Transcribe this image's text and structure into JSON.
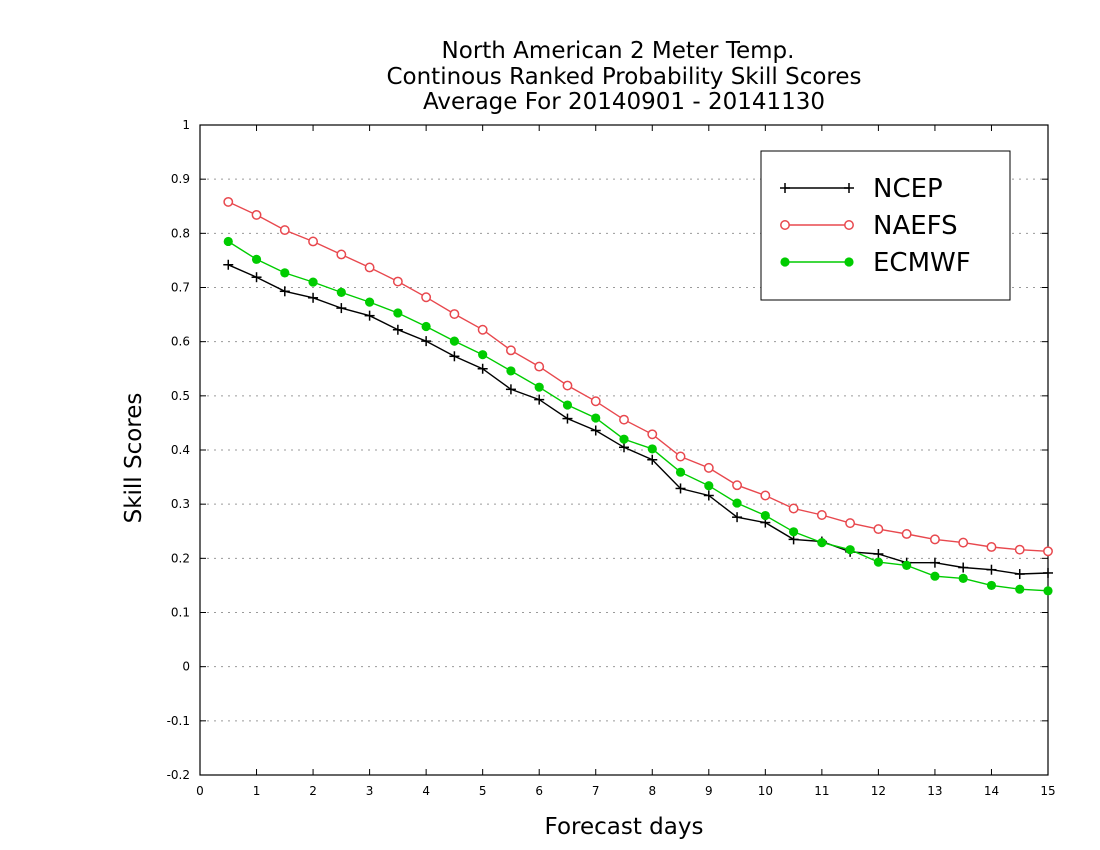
{
  "chart_data": {
    "type": "line",
    "title_lines": [
      "North American 2 Meter Temp.",
      "Continous Ranked Probability Skill Scores",
      "Average For 20140901 - 20141130"
    ],
    "xlabel": "Forecast days",
    "ylabel": "Skill Scores",
    "xlim": [
      0,
      15
    ],
    "ylim": [
      -0.2,
      1
    ],
    "xticks": [
      0,
      1,
      2,
      3,
      4,
      5,
      6,
      7,
      8,
      9,
      10,
      11,
      12,
      13,
      14,
      15
    ],
    "xtick_labels": [
      "0",
      "1",
      "2",
      "3",
      "4",
      "5",
      "6",
      "7",
      "8",
      "9",
      "10",
      "11",
      "12",
      "13",
      "14",
      "15"
    ],
    "yticks": [
      -0.2,
      -0.1,
      0,
      0.1,
      0.2,
      0.3,
      0.4,
      0.5,
      0.6,
      0.7,
      0.8,
      0.9,
      1
    ],
    "ytick_labels": [
      "-0.2",
      "-0.1",
      "0",
      "0.1",
      "0.2",
      "0.3",
      "0.4",
      "0.5",
      "0.6",
      "0.7",
      "0.8",
      "0.9",
      "1"
    ],
    "grid": "horizontal dotted",
    "legend_position": "top-right",
    "x": [
      0.5,
      1,
      1.5,
      2,
      2.5,
      3,
      3.5,
      4,
      4.5,
      5,
      5.5,
      6,
      6.5,
      7,
      7.5,
      8,
      8.5,
      9,
      9.5,
      10,
      10.5,
      11,
      11.5,
      12,
      12.5,
      13,
      13.5,
      14,
      14.5,
      15
    ],
    "series": [
      {
        "name": "NCEP",
        "color": "#000000",
        "marker": "plus",
        "values": [
          0.742,
          0.719,
          0.693,
          0.681,
          0.662,
          0.648,
          0.622,
          0.601,
          0.573,
          0.55,
          0.512,
          0.493,
          0.458,
          0.436,
          0.405,
          0.382,
          0.329,
          0.316,
          0.276,
          0.266,
          0.235,
          0.231,
          0.212,
          0.208,
          0.192,
          0.192,
          0.183,
          0.179,
          0.171,
          0.173
        ]
      },
      {
        "name": "NAEFS",
        "color": "#e8484e",
        "marker": "open-circle",
        "values": [
          0.858,
          0.834,
          0.806,
          0.785,
          0.761,
          0.737,
          0.711,
          0.682,
          0.651,
          0.622,
          0.584,
          0.554,
          0.519,
          0.49,
          0.456,
          0.429,
          0.388,
          0.367,
          0.335,
          0.316,
          0.292,
          0.28,
          0.265,
          0.254,
          0.245,
          0.235,
          0.229,
          0.221,
          0.216,
          0.213
        ]
      },
      {
        "name": "ECMWF",
        "color": "#00cc00",
        "marker": "filled-circle",
        "values": [
          0.785,
          0.752,
          0.727,
          0.71,
          0.691,
          0.673,
          0.653,
          0.628,
          0.601,
          0.576,
          0.546,
          0.516,
          0.483,
          0.459,
          0.42,
          0.402,
          0.359,
          0.334,
          0.302,
          0.279,
          0.249,
          0.229,
          0.216,
          0.193,
          0.187,
          0.167,
          0.163,
          0.15,
          0.143,
          0.14
        ]
      }
    ]
  }
}
